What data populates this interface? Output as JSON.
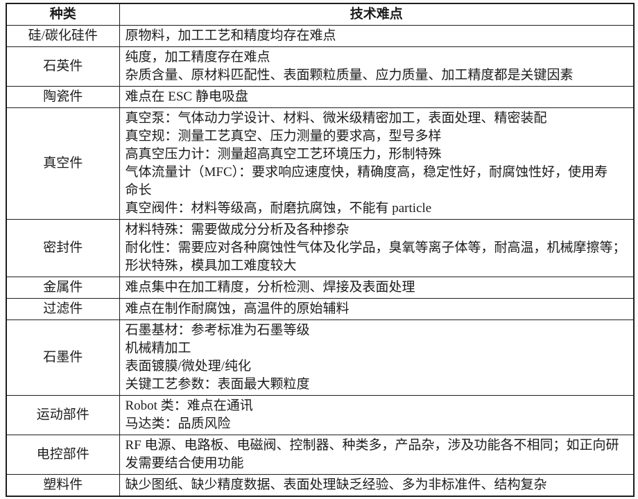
{
  "table": {
    "header": {
      "type_label": "种类",
      "difficulty_label": "技术难点"
    },
    "rows": [
      {
        "type": "硅/碳化硅件",
        "lines": [
          "原物料，加工工艺和精度均存在难点"
        ]
      },
      {
        "type": "石英件",
        "lines": [
          "纯度，加工精度存在难点",
          "杂质含量、原材料匹配性、表面颗粒质量、应力质量、加工精度都是关键因素"
        ]
      },
      {
        "type": "陶瓷件",
        "lines": [
          "难点在 ESC 静电吸盘"
        ]
      },
      {
        "type": "真空件",
        "lines": [
          "真空泵：气体动力学设计、材料、微米级精密加工，表面处理、精密装配",
          "真空规：测量工艺真空、压力测量的要求高，型号多样",
          "高真空压力计：测量超高真空工艺环境压力，形制特殊",
          "气体流量计（MFC）：要求响应速度快，精确度高，稳定性好，耐腐蚀性好，使用寿",
          "命长",
          "真空阀件：材料等级高，耐磨抗腐蚀，不能有 particle"
        ]
      },
      {
        "type": "密封件",
        "lines": [
          "材料特殊：需要做成分分析及各种掺杂",
          "耐化性：需要应对各种腐蚀性气体及化学品，臭氧等离子体等，耐高温，机械摩擦等；",
          "形状特殊，模具加工难度较大"
        ]
      },
      {
        "type": "金属件",
        "lines": [
          "难点集中在加工精度，分析检测、焊接及表面处理"
        ]
      },
      {
        "type": "过滤件",
        "lines": [
          "难点在制作耐腐蚀，高温件的原始辅料"
        ]
      },
      {
        "type": "石墨件",
        "lines": [
          "石墨基材：参考标准为石墨等级",
          "机械精加工",
          "表面镀膜/微处理/纯化",
          "关键工艺参数：表面最大颗粒度"
        ]
      },
      {
        "type": "运动部件",
        "lines": [
          "Robot 类：难点在通讯",
          "马达类：品质风险"
        ]
      },
      {
        "type": "电控部件",
        "lines": [
          "RF 电源、电路板、电磁阀、控制器、种类多，产品杂，涉及功能各不相同；如正向研",
          "发需要结合使用功能"
        ]
      },
      {
        "type": "塑料件",
        "lines": [
          "缺少图纸、缺少精度数据、表面处理缺乏经验、多为非标准件、结构复杂"
        ]
      }
    ]
  }
}
